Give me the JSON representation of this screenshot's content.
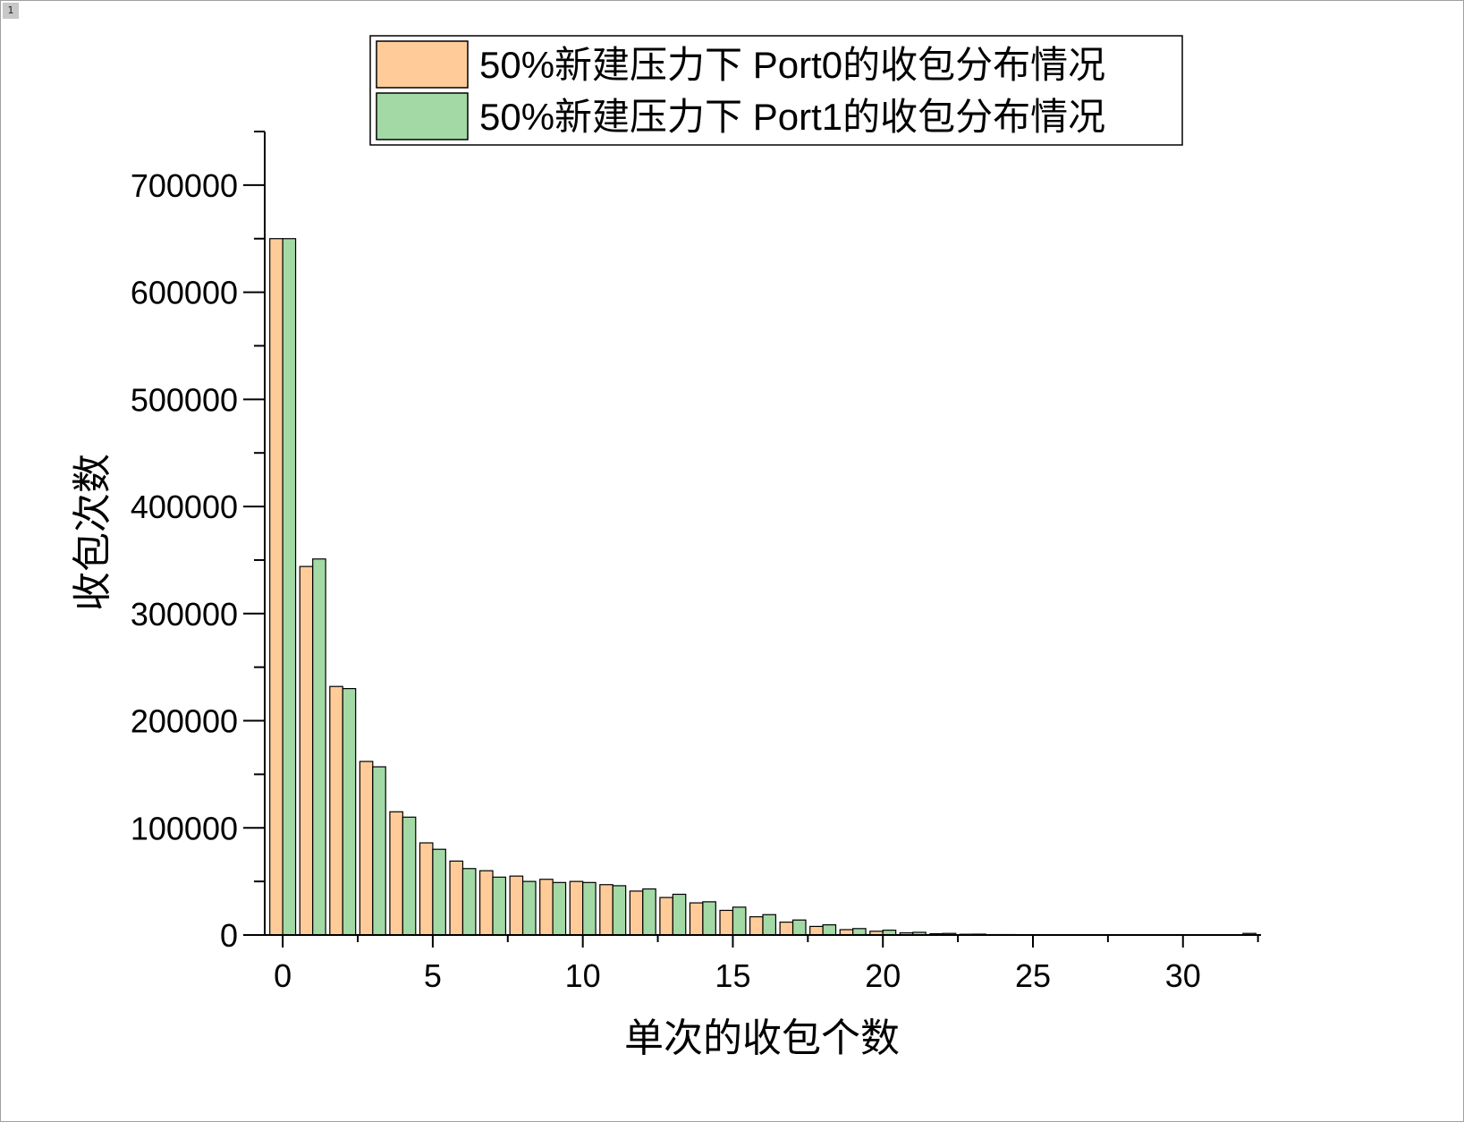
{
  "page": {
    "number": "1"
  },
  "colors": {
    "port0": "#FFCC99",
    "port1": "#A3D9A5",
    "axis": "#000000"
  },
  "chart_data": {
    "type": "bar",
    "title": "",
    "xlabel": "单次的收包个数",
    "ylabel": "收包次数",
    "xlim": [
      -0.6,
      32.6
    ],
    "ylim": [
      0,
      750000
    ],
    "xticks": [
      0,
      5,
      10,
      15,
      20,
      25,
      30
    ],
    "yticks": [
      0,
      100000,
      200000,
      300000,
      400000,
      500000,
      600000,
      700000
    ],
    "xtick_labels": [
      "0",
      "5",
      "10",
      "15",
      "20",
      "25",
      "30"
    ],
    "ytick_labels": [
      "0",
      "100000",
      "200000",
      "300000",
      "400000",
      "500000",
      "600000",
      "700000"
    ],
    "legend": {
      "position": "top-center",
      "frame": true
    },
    "x": [
      0,
      1,
      2,
      3,
      4,
      5,
      6,
      7,
      8,
      9,
      10,
      11,
      12,
      13,
      14,
      15,
      16,
      17,
      18,
      19,
      20,
      21,
      22,
      23,
      24,
      25,
      26,
      27,
      28,
      29,
      30,
      31,
      32
    ],
    "series": [
      {
        "name": "50%新建压力下 Port0的收包分布情况",
        "color": "#FFCC99",
        "values": [
          650000,
          344000,
          232000,
          162000,
          115000,
          86000,
          69000,
          60000,
          55000,
          52000,
          50000,
          47000,
          41000,
          35000,
          30000,
          23000,
          17000,
          12000,
          8000,
          5000,
          3500,
          2000,
          1200,
          700,
          400,
          200,
          100,
          100,
          50,
          50,
          50,
          50,
          50
        ]
      },
      {
        "name": "50%新建压力下 Port1的收包分布情况",
        "color": "#A3D9A5",
        "values": [
          650000,
          351000,
          230000,
          157000,
          110000,
          80000,
          62000,
          54000,
          50000,
          49000,
          49000,
          46000,
          43000,
          38000,
          31000,
          26000,
          19000,
          14000,
          9500,
          6000,
          4500,
          2500,
          1500,
          800,
          400,
          200,
          100,
          100,
          50,
          50,
          50,
          50,
          1500
        ]
      }
    ]
  }
}
